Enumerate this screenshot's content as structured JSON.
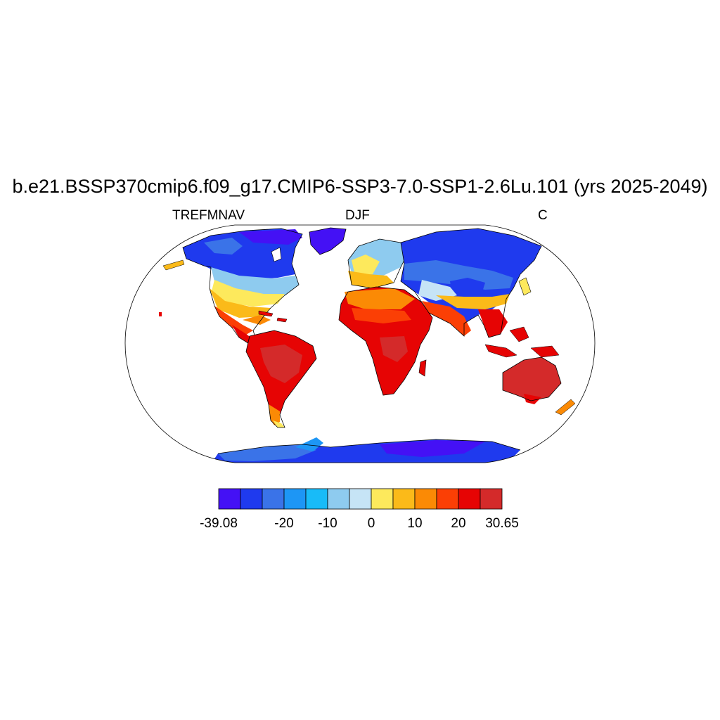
{
  "title": "b.e21.BSSP370cmip6.f09_g17.CMIP6-SSP3-7.0-SSP1-2.6Lu.101 (yrs 2025-2049)",
  "left_string": "TREFMNAV",
  "center_string": "DJF",
  "right_string": "C",
  "chart_data": {
    "type": "map",
    "projection": "Robinson",
    "variable": "TREFMNAV",
    "season": "DJF",
    "units": "C",
    "colorbar": {
      "colors": [
        "#4411f5",
        "#1f3aee",
        "#3a73e8",
        "#1d96f5",
        "#18bbf8",
        "#8ecbef",
        "#c6e4f6",
        "#fde95c",
        "#fbba19",
        "#fb8a05",
        "#fb3f05",
        "#e60404",
        "#d42a2a"
      ],
      "labels": [
        "-39.08",
        "",
        "-20",
        "-10",
        "0",
        "10",
        "20",
        "30.65"
      ]
    }
  }
}
